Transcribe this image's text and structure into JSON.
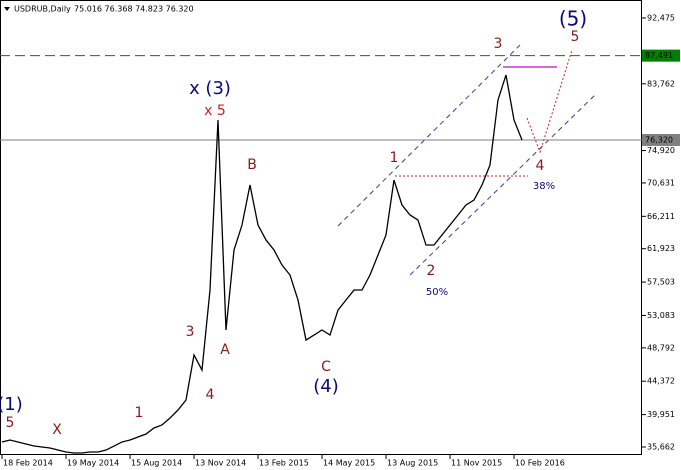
{
  "chart_data": {
    "type": "line",
    "title": "USDRUB,Daily",
    "subtitle": "75.016 76.368 74.823 76.320",
    "categories": [
      "18 Feb 2014",
      null,
      null,
      null,
      null,
      null,
      null,
      null,
      "19 May 2014",
      null,
      null,
      null,
      null,
      null,
      null,
      null,
      "15 Aug 2014",
      null,
      null,
      null,
      null,
      null,
      null,
      null,
      "13 Nov 2014",
      null,
      null,
      null,
      null,
      null,
      null,
      null,
      "13 Feb 2015",
      null,
      null,
      null,
      null,
      null,
      null,
      null,
      "14 May 2015",
      null,
      null,
      null,
      null,
      null,
      null,
      null,
      "13 Aug 2015",
      null,
      null,
      null,
      null,
      null,
      null,
      null,
      "11 Nov 2015",
      null,
      null,
      null,
      null,
      null,
      null,
      null,
      "10 Feb 2016",
      null
    ],
    "values": [
      36.33,
      36.59,
      36.33,
      36.06,
      35.79,
      35.66,
      35.53,
      35.26,
      35.0,
      34.87,
      34.87,
      35.0,
      35.0,
      35.26,
      35.79,
      36.33,
      36.59,
      36.99,
      37.38,
      38.18,
      38.58,
      39.5,
      40.56,
      41.89,
      47.85,
      45.86,
      56.45,
      78.97,
      51.16,
      61.75,
      65.06,
      70.36,
      65.06,
      63.08,
      61.75,
      59.76,
      58.44,
      55.13,
      49.83,
      50.49,
      51.16,
      50.49,
      53.8,
      55.13,
      56.45,
      56.45,
      58.44,
      61.09,
      63.74,
      71.02,
      67.71,
      66.39,
      65.72,
      62.41,
      62.41,
      63.74,
      65.06,
      66.39,
      67.71,
      68.37,
      70.36,
      73.01,
      81.62,
      84.93,
      78.97,
      76.32
    ],
    "color": "#000000",
    "ylim": [
      34.603,
      94.859
    ],
    "yticks": [
      {
        "value": 92.475,
        "label": "92,475"
      },
      {
        "value": 83.762,
        "label": "83,762"
      },
      {
        "value": 74.92,
        "label": "74,920"
      },
      {
        "value": 70.631,
        "label": "70,631"
      },
      {
        "value": 66.211,
        "label": "66,211"
      },
      {
        "value": 61.923,
        "label": "61,923"
      },
      {
        "value": 57.503,
        "label": "57,503"
      },
      {
        "value": 53.083,
        "label": "53,083"
      },
      {
        "value": 48.792,
        "label": "48,792"
      },
      {
        "value": 44.372,
        "label": "44,372"
      },
      {
        "value": 39.951,
        "label": "39,951"
      },
      {
        "value": 35.662,
        "label": "35,662"
      }
    ],
    "levels": [
      {
        "value": 87.491,
        "label": "87,491",
        "color": "#008000"
      },
      {
        "value": 76.32,
        "label": "76,320",
        "color": "#808080"
      }
    ],
    "annotations": [
      {
        "text": "(1)",
        "color": "#0a0a7a"
      },
      {
        "text": "5",
        "color": "#8b1a1a"
      },
      {
        "text": "X",
        "color": "#8b1a1a"
      },
      {
        "text": "1",
        "color": "#8b1a1a"
      },
      {
        "text": "3",
        "color": "#8b1a1a"
      },
      {
        "text": "4",
        "color": "#8b1a1a"
      },
      {
        "text": "x (3)",
        "color": "#0a0a7a"
      },
      {
        "text": "x 5",
        "color": "#cc2020"
      },
      {
        "text": "A",
        "color": "#8b1a1a"
      },
      {
        "text": "B",
        "color": "#8b1a1a"
      },
      {
        "text": "C",
        "color": "#8b1a1a"
      },
      {
        "text": "(4)",
        "color": "#0a0a7a"
      },
      {
        "text": "1",
        "color": "#8b1a1a"
      },
      {
        "text": "2",
        "color": "#8b1a1a"
      },
      {
        "text": "50%",
        "color": "#0a0a7a"
      },
      {
        "text": "3",
        "color": "#8b1a1a"
      },
      {
        "text": "4",
        "color": "#8b1a1a"
      },
      {
        "text": "38%",
        "color": "#0a0a7a"
      },
      {
        "text": "(5)",
        "color": "#0a0a7a"
      },
      {
        "text": "5",
        "color": "#8b1a1a"
      }
    ]
  }
}
